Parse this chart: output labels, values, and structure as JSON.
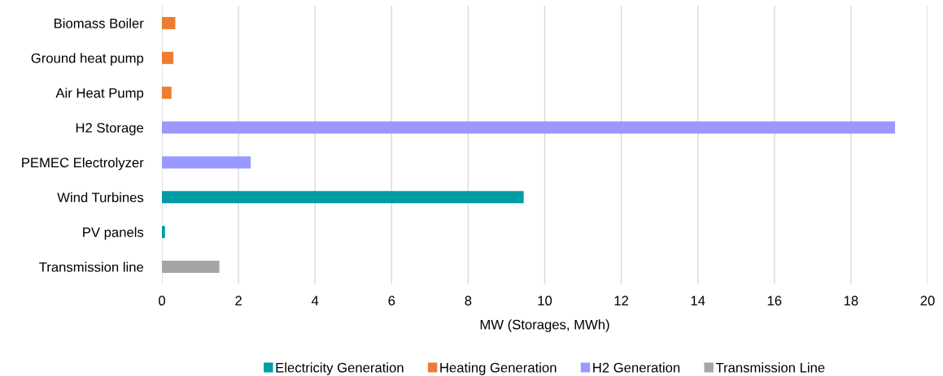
{
  "chart_data": {
    "type": "bar",
    "orientation": "horizontal",
    "xlabel": "MW (Storages, MWh)",
    "categories": [
      "Biomass Boiler",
      "Ground heat pump",
      "Air Heat Pump",
      "H2 Storage",
      "PEMEC Electrolyzer",
      "Wind Turbines",
      "PV panels",
      "Transmission line"
    ],
    "series": [
      {
        "name": "Electricity Generation",
        "color": "#009ca6",
        "values": [
          null,
          null,
          null,
          null,
          null,
          9.45,
          0.08,
          null
        ]
      },
      {
        "name": "Heating Generation",
        "color": "#ed7d31",
        "values": [
          0.35,
          0.3,
          0.25,
          null,
          null,
          null,
          null,
          null
        ]
      },
      {
        "name": "H2 Generation",
        "color": "#9999ff",
        "values": [
          null,
          null,
          null,
          19.15,
          2.32,
          null,
          null,
          null
        ]
      },
      {
        "name": "Transmission Line",
        "color": "#a5a5a5",
        "values": [
          null,
          null,
          null,
          null,
          null,
          null,
          null,
          1.5
        ]
      }
    ],
    "xlim": [
      0,
      20
    ],
    "xticks": [
      0,
      2,
      4,
      6,
      8,
      10,
      12,
      14,
      16,
      18,
      20
    ],
    "grid": "x",
    "legend": "bottom"
  }
}
